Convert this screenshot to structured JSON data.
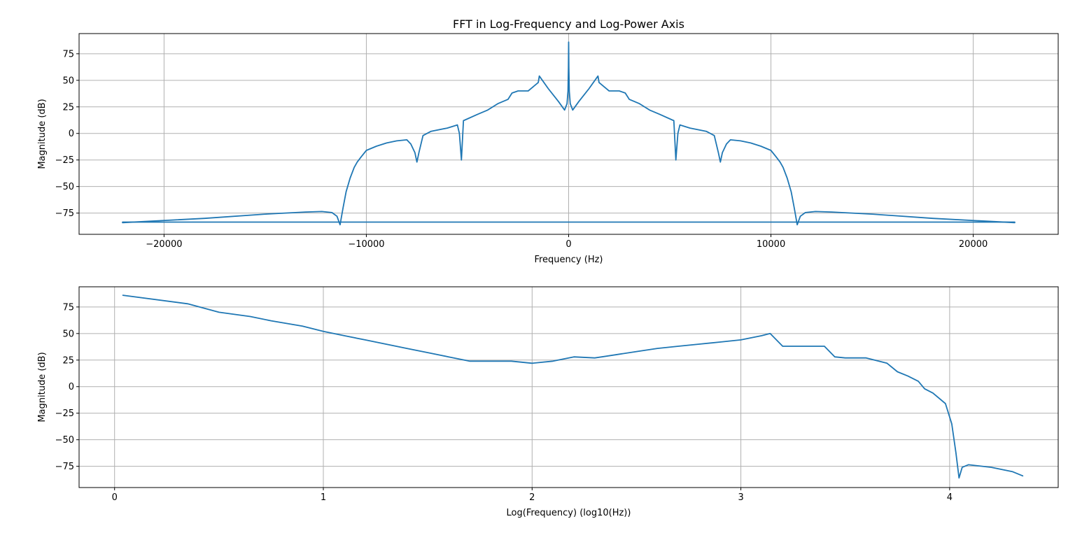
{
  "chart_data": [
    {
      "type": "line",
      "title": "FFT in Log-Frequency and Log-Power Axis",
      "xlabel": "Frequency (Hz)",
      "ylabel": "Magnitude (dB)",
      "xlim": [
        -24200,
        24200
      ],
      "ylim": [
        -95,
        94
      ],
      "xticks": [
        -20000,
        -10000,
        0,
        10000,
        20000
      ],
      "xtick_labels": [
        "−20000",
        "−10000",
        "0",
        "10000",
        "20000"
      ],
      "yticks": [
        -75,
        -50,
        -25,
        0,
        25,
        50,
        75
      ],
      "ytick_labels": [
        "−75",
        "−50",
        "−25",
        "0",
        "25",
        "50",
        "75"
      ],
      "grid": true,
      "color": "#1f77b4",
      "series": [
        {
          "x": [
            -22050,
            -18000,
            -15000,
            -13000,
            -12200,
            -11700,
            -11450,
            -11300,
            -11150,
            -11000,
            -10800,
            -10600,
            -10450,
            -10250,
            -10000,
            -9500,
            -9000,
            -8500,
            -8000,
            -7800,
            -7600,
            -7500,
            -7400,
            -7200,
            -6800,
            -6000,
            -5500,
            -5400,
            -5300,
            -5200,
            -4500,
            -4000,
            -3500,
            -3000,
            -2800,
            -2500,
            -2000,
            -1500,
            -1450,
            -1000,
            -500,
            -200,
            -80,
            -30,
            -10,
            0,
            10,
            30,
            80,
            200,
            500,
            1000,
            1450,
            1500,
            2000,
            2500,
            2800,
            3000,
            3500,
            4000,
            4500,
            5200,
            5300,
            5400,
            5500,
            6000,
            6800,
            7200,
            7400,
            7500,
            7600,
            7800,
            8000,
            8500,
            9000,
            9500,
            10000,
            10250,
            10450,
            10600,
            10800,
            11000,
            11150,
            11300,
            11450,
            11700,
            12200,
            13000,
            15000,
            18000,
            22050
          ],
          "y": [
            -84,
            -80,
            -76,
            -74,
            -73.5,
            -74.5,
            -78,
            -86,
            -70,
            -55,
            -42,
            -32,
            -27,
            -22,
            -16,
            -12,
            -9,
            -7,
            -6,
            -10,
            -18,
            -27,
            -18,
            -2,
            2,
            5,
            8,
            0,
            -25,
            12,
            18,
            22,
            28,
            32,
            38,
            40,
            40,
            48,
            54,
            42,
            30,
            22,
            28,
            40,
            62,
            86,
            62,
            40,
            28,
            22,
            30,
            42,
            54,
            48,
            40,
            40,
            38,
            32,
            28,
            22,
            18,
            12,
            -25,
            0,
            8,
            5,
            2,
            -2,
            -18,
            -27,
            -18,
            -10,
            -6,
            -7,
            -9,
            -12,
            -16,
            -22,
            -27,
            -32,
            -42,
            -55,
            -70,
            -86,
            -78,
            -74.5,
            -73.5,
            -74,
            -76,
            -80,
            -84
          ]
        },
        {
          "x": [
            -22050,
            22050
          ],
          "y": [
            -83.5,
            -83.5
          ]
        }
      ]
    },
    {
      "type": "line",
      "title": "",
      "xlabel": "Log(Frequency) (log10(Hz))",
      "ylabel": "Magnitude (dB)",
      "xlim": [
        -0.17,
        4.52
      ],
      "ylim": [
        -95,
        94
      ],
      "xticks": [
        0,
        1,
        2,
        3,
        4
      ],
      "xtick_labels": [
        "0",
        "1",
        "2",
        "3",
        "4"
      ],
      "yticks": [
        -75,
        -50,
        -25,
        0,
        25,
        50,
        75
      ],
      "ytick_labels": [
        "−75",
        "−50",
        "−25",
        "0",
        "25",
        "50",
        "75"
      ],
      "grid": true,
      "color": "#1f77b4",
      "series": [
        {
          "x": [
            0.04,
            0.35,
            0.5,
            0.65,
            0.75,
            0.9,
            1.0,
            1.1,
            1.2,
            1.3,
            1.4,
            1.5,
            1.6,
            1.7,
            1.8,
            1.9,
            2.0,
            2.1,
            2.2,
            2.3,
            2.4,
            2.5,
            2.6,
            2.7,
            2.8,
            2.9,
            3.0,
            3.1,
            3.14,
            3.2,
            3.3,
            3.4,
            3.45,
            3.5,
            3.6,
            3.7,
            3.75,
            3.8,
            3.85,
            3.88,
            3.92,
            3.98,
            4.01,
            4.03,
            4.045,
            4.06,
            4.09,
            4.2,
            4.3,
            4.35
          ],
          "y": [
            86,
            78,
            70,
            66,
            62,
            57,
            52,
            48,
            44,
            40,
            36,
            32,
            28,
            24,
            24,
            24,
            22,
            24,
            28,
            27,
            30,
            33,
            36,
            38,
            40,
            42,
            44,
            48,
            50,
            38,
            38,
            38,
            28,
            27,
            27,
            22,
            14,
            10,
            5,
            -2,
            -6,
            -16,
            -35,
            -62,
            -86,
            -76,
            -73.5,
            -76,
            -80,
            -84
          ]
        }
      ]
    }
  ]
}
